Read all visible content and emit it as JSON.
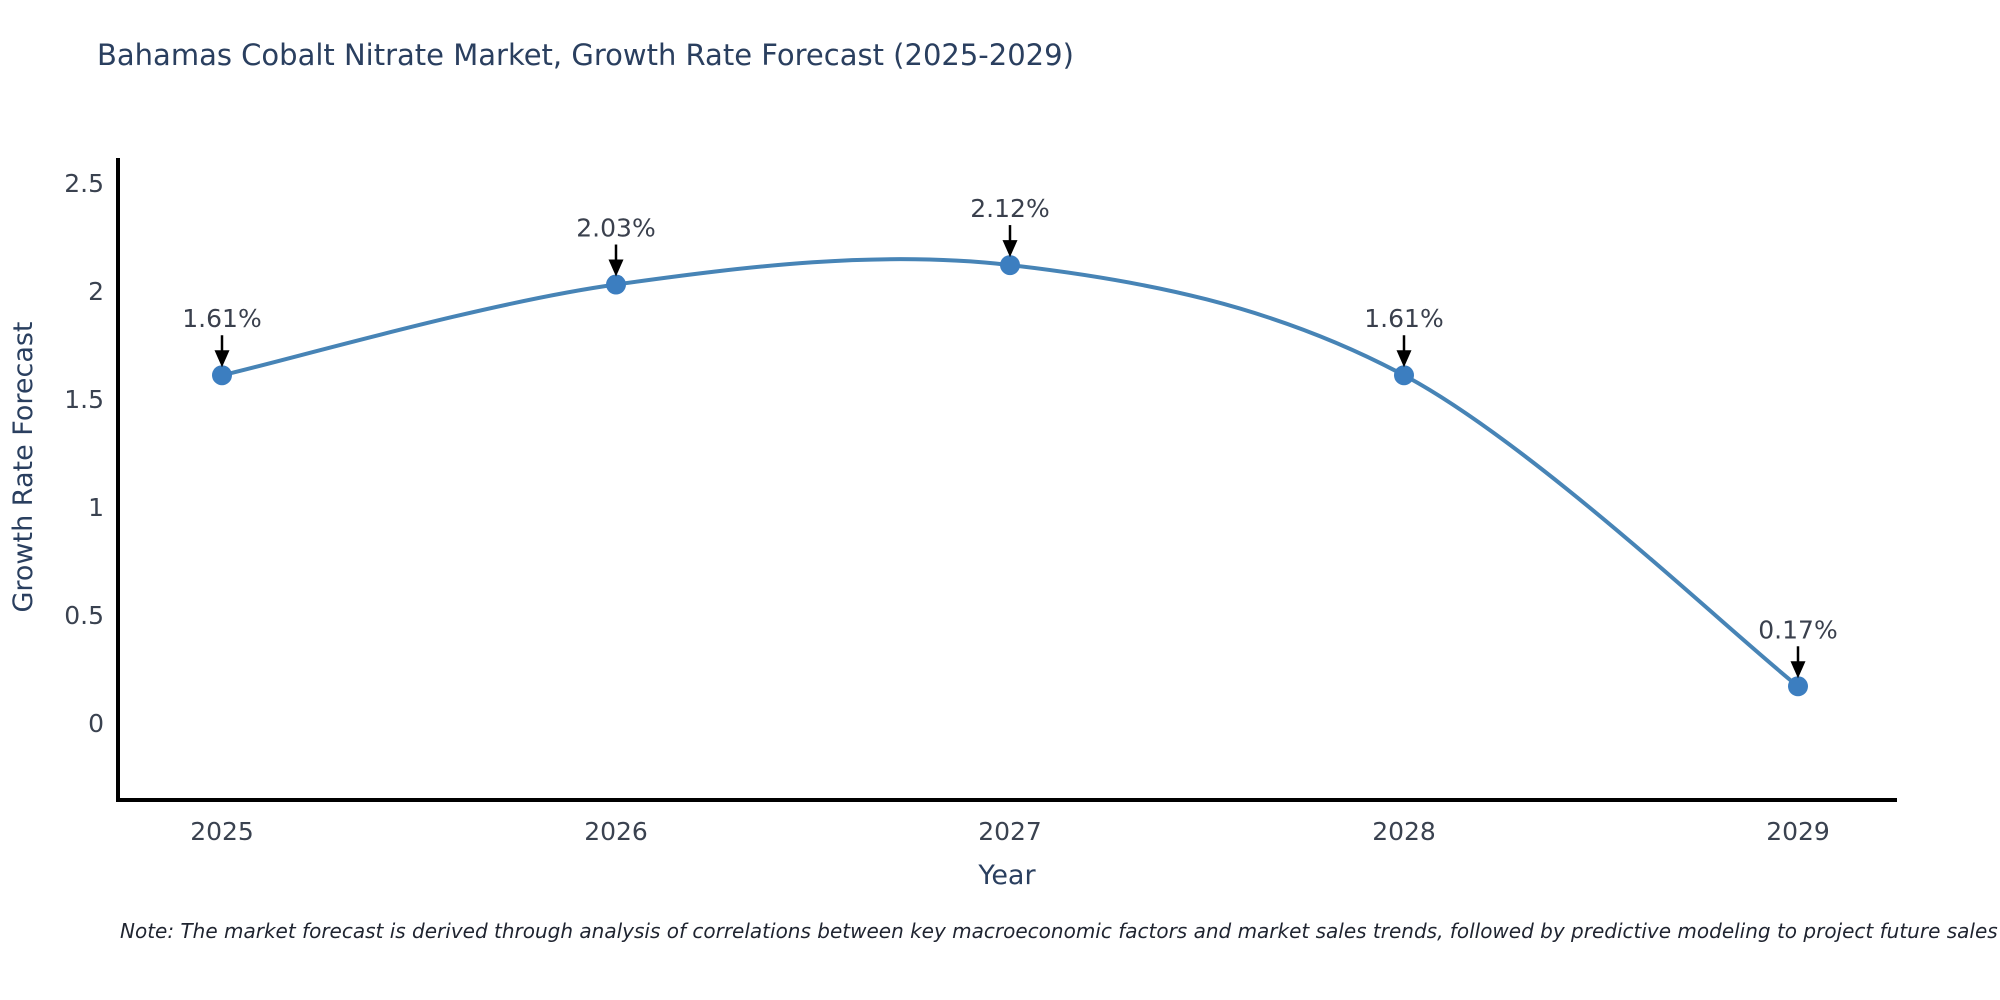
{
  "header": {
    "title": "Bahamas Cobalt Nitrate Market, Growth Rate Forecast (2025-2029)"
  },
  "footnote": "Note: The market forecast is derived through analysis of correlations between key macroeconomic factors and market sales trends, followed by predictive modeling to project future sales",
  "chart_data": {
    "type": "line",
    "title": "Bahamas Cobalt Nitrate Market, Growth Rate Forecast (2025-2029)",
    "xlabel": "Year",
    "ylabel": "Growth Rate Forecast",
    "categories": [
      2025,
      2026,
      2027,
      2028,
      2029
    ],
    "series": [
      {
        "name": "Growth Rate Forecast",
        "values": [
          1.61,
          2.03,
          2.12,
          1.61,
          0.17
        ]
      }
    ],
    "point_labels": [
      "1.61%",
      "2.03%",
      "2.12%",
      "1.61%",
      "0.17%"
    ],
    "yticks": [
      0,
      0.5,
      1,
      1.5,
      2,
      2.5
    ],
    "ylim": [
      -0.36,
      2.61
    ],
    "line_shape": "spline",
    "grid": false,
    "legend": "none",
    "colors": {
      "line": "#4784b6",
      "marker": "#3c7ec0",
      "axis": "#000000",
      "arrow": "#000000",
      "title_text": "#2a3f5f",
      "tick_text": "#3a4250",
      "annotation_text": "#3a404d",
      "background": "#ffffff"
    }
  }
}
